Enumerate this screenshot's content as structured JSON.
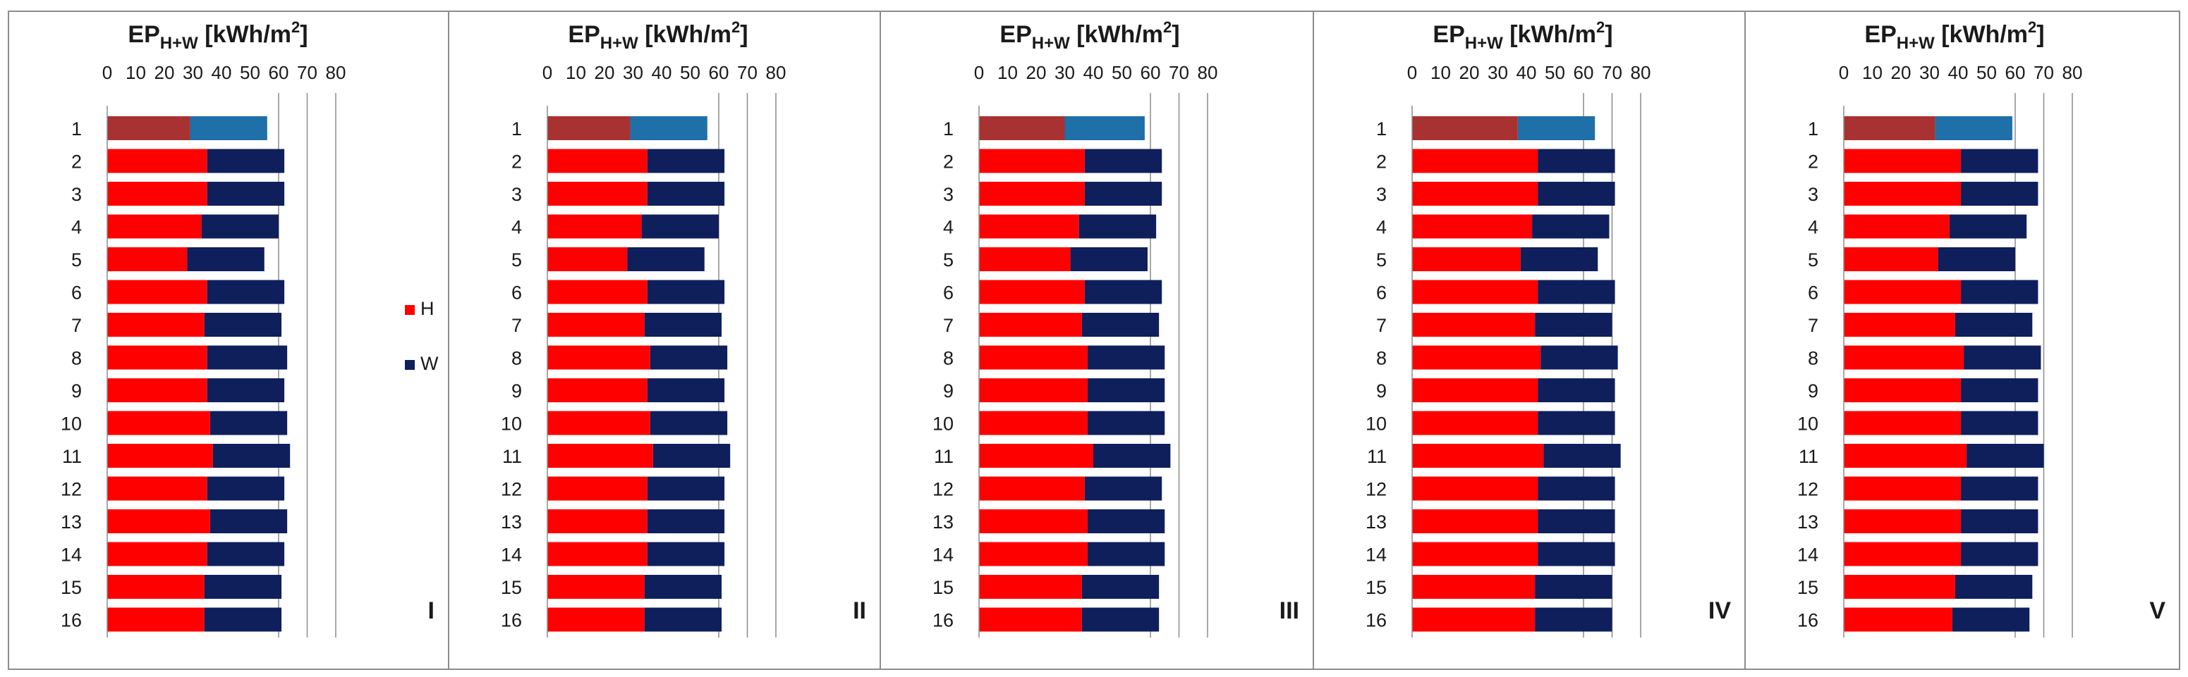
{
  "figure": {
    "series_legend": [
      {
        "key": "H",
        "label": "H",
        "color": "#ff0000"
      },
      {
        "key": "W",
        "label": "W",
        "color": "#0f1f5c"
      }
    ],
    "first_row_colors": {
      "H": "#a83232",
      "W": "#1f6fa8"
    }
  },
  "chart_data": [
    {
      "type": "bar",
      "orientation": "horizontal",
      "stacked": true,
      "panel_label": "I",
      "title": {
        "main": "EP",
        "sub": "H+W",
        "unit_pre": " [kWh/m",
        "unit_sup": "2",
        "unit_post": "]"
      },
      "xlim": [
        0,
        80
      ],
      "xticks": [
        "0",
        "10",
        "20",
        "30",
        "40",
        "50",
        "60",
        "70",
        "80"
      ],
      "categories": [
        "1",
        "2",
        "3",
        "4",
        "5",
        "6",
        "7",
        "8",
        "9",
        "10",
        "11",
        "12",
        "13",
        "14",
        "15",
        "16"
      ],
      "series": [
        {
          "name": "H",
          "values": [
            29,
            35,
            35,
            33,
            28,
            35,
            34,
            35,
            35,
            36,
            37,
            35,
            36,
            35,
            34,
            34
          ]
        },
        {
          "name": "W",
          "values": [
            27,
            27,
            27,
            27,
            27,
            27,
            27,
            28,
            27,
            27,
            27,
            27,
            27,
            27,
            27,
            27
          ]
        }
      ],
      "legend": [
        "H",
        "W"
      ]
    },
    {
      "type": "bar",
      "orientation": "horizontal",
      "stacked": true,
      "panel_label": "II",
      "title": {
        "main": "EP",
        "sub": "H+W",
        "unit_pre": " [kWh/m",
        "unit_sup": "2",
        "unit_post": "]"
      },
      "xlim": [
        0,
        80
      ],
      "xticks": [
        "0",
        "10",
        "20",
        "30",
        "40",
        "50",
        "60",
        "70",
        "80"
      ],
      "categories": [
        "1",
        "2",
        "3",
        "4",
        "5",
        "6",
        "7",
        "8",
        "9",
        "10",
        "11",
        "12",
        "13",
        "14",
        "15",
        "16"
      ],
      "series": [
        {
          "name": "H",
          "values": [
            29,
            35,
            35,
            33,
            28,
            35,
            34,
            36,
            35,
            36,
            37,
            35,
            35,
            35,
            34,
            34
          ]
        },
        {
          "name": "W",
          "values": [
            27,
            27,
            27,
            27,
            27,
            27,
            27,
            27,
            27,
            27,
            27,
            27,
            27,
            27,
            27,
            27
          ]
        }
      ]
    },
    {
      "type": "bar",
      "orientation": "horizontal",
      "stacked": true,
      "panel_label": "III",
      "title": {
        "main": "EP",
        "sub": "H+W",
        "unit_pre": " [kWh/m",
        "unit_sup": "2",
        "unit_post": "]"
      },
      "xlim": [
        0,
        80
      ],
      "xticks": [
        "0",
        "10",
        "20",
        "30",
        "40",
        "50",
        "60",
        "70",
        "80"
      ],
      "categories": [
        "1",
        "2",
        "3",
        "4",
        "5",
        "6",
        "7",
        "8",
        "9",
        "10",
        "11",
        "12",
        "13",
        "14",
        "15",
        "16"
      ],
      "series": [
        {
          "name": "H",
          "values": [
            30,
            37,
            37,
            35,
            32,
            37,
            36,
            38,
            38,
            38,
            40,
            37,
            38,
            38,
            36,
            36
          ]
        },
        {
          "name": "W",
          "values": [
            28,
            27,
            27,
            27,
            27,
            27,
            27,
            27,
            27,
            27,
            27,
            27,
            27,
            27,
            27,
            27
          ]
        }
      ]
    },
    {
      "type": "bar",
      "orientation": "horizontal",
      "stacked": true,
      "panel_label": "IV",
      "title": {
        "main": "EP",
        "sub": "H+W",
        "unit_pre": " [kWh/m",
        "unit_sup": "2",
        "unit_post": "]"
      },
      "xlim": [
        0,
        80
      ],
      "xticks": [
        "0",
        "10",
        "20",
        "30",
        "40",
        "50",
        "60",
        "70",
        "80"
      ],
      "categories": [
        "1",
        "2",
        "3",
        "4",
        "5",
        "6",
        "7",
        "8",
        "9",
        "10",
        "11",
        "12",
        "13",
        "14",
        "15",
        "16"
      ],
      "series": [
        {
          "name": "H",
          "values": [
            37,
            44,
            44,
            42,
            38,
            44,
            43,
            45,
            44,
            44,
            46,
            44,
            44,
            44,
            43,
            43
          ]
        },
        {
          "name": "W",
          "values": [
            27,
            27,
            27,
            27,
            27,
            27,
            27,
            27,
            27,
            27,
            27,
            27,
            27,
            27,
            27,
            27
          ]
        }
      ]
    },
    {
      "type": "bar",
      "orientation": "horizontal",
      "stacked": true,
      "panel_label": "V",
      "title": {
        "main": "EP",
        "sub": "H+W",
        "unit_pre": " [kWh/m",
        "unit_sup": "2",
        "unit_post": "]"
      },
      "xlim": [
        0,
        80
      ],
      "xticks": [
        "0",
        "10",
        "20",
        "30",
        "40",
        "50",
        "60",
        "70",
        "80"
      ],
      "categories": [
        "1",
        "2",
        "3",
        "4",
        "5",
        "6",
        "7",
        "8",
        "9",
        "10",
        "11",
        "12",
        "13",
        "14",
        "15",
        "16"
      ],
      "series": [
        {
          "name": "H",
          "values": [
            32,
            41,
            41,
            37,
            33,
            41,
            39,
            42,
            41,
            41,
            43,
            41,
            41,
            41,
            39,
            38
          ]
        },
        {
          "name": "W",
          "values": [
            27,
            27,
            27,
            27,
            27,
            27,
            27,
            27,
            27,
            27,
            27,
            27,
            27,
            27,
            27,
            27
          ]
        }
      ]
    }
  ]
}
